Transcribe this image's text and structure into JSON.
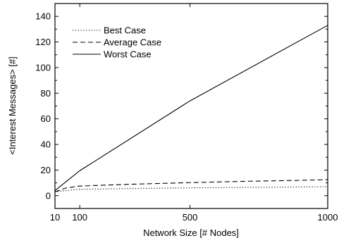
{
  "chart_data": {
    "type": "line",
    "xlabel": "Network Size [# Nodes]",
    "ylabel": "<Interest Messages> [#]",
    "xlim": [
      10,
      1000
    ],
    "ylim": [
      -10,
      150
    ],
    "xticks": [
      10,
      100,
      500,
      1000
    ],
    "xtick_labels": [
      "10",
      "100",
      "500",
      "1000"
    ],
    "yticks": [
      0,
      20,
      40,
      60,
      80,
      100,
      120,
      140
    ],
    "ytick_labels": [
      "0",
      "20",
      "40",
      "60",
      "80",
      "100",
      "120",
      "140"
    ],
    "grid": false,
    "legend_position": "top-left",
    "series": [
      {
        "name": "Best Case",
        "line_style": "dotted",
        "x": [
          10,
          50,
          100,
          200,
          300,
          400,
          500,
          600,
          700,
          800,
          900,
          1000
        ],
        "y": [
          3,
          4,
          5,
          5.3,
          5.6,
          5.9,
          6.1,
          6.3,
          6.5,
          6.6,
          6.8,
          7
        ]
      },
      {
        "name": "Average Case",
        "line_style": "dashed",
        "x": [
          10,
          50,
          100,
          200,
          300,
          400,
          500,
          600,
          700,
          800,
          900,
          1000
        ],
        "y": [
          3,
          6,
          7.5,
          8.3,
          9,
          9.6,
          10.2,
          10.7,
          11.2,
          11.6,
          12,
          12.5
        ]
      },
      {
        "name": "Worst Case",
        "line_style": "solid",
        "x": [
          10,
          100,
          500,
          1000
        ],
        "y": [
          4,
          19.5,
          74,
          133
        ]
      }
    ]
  }
}
